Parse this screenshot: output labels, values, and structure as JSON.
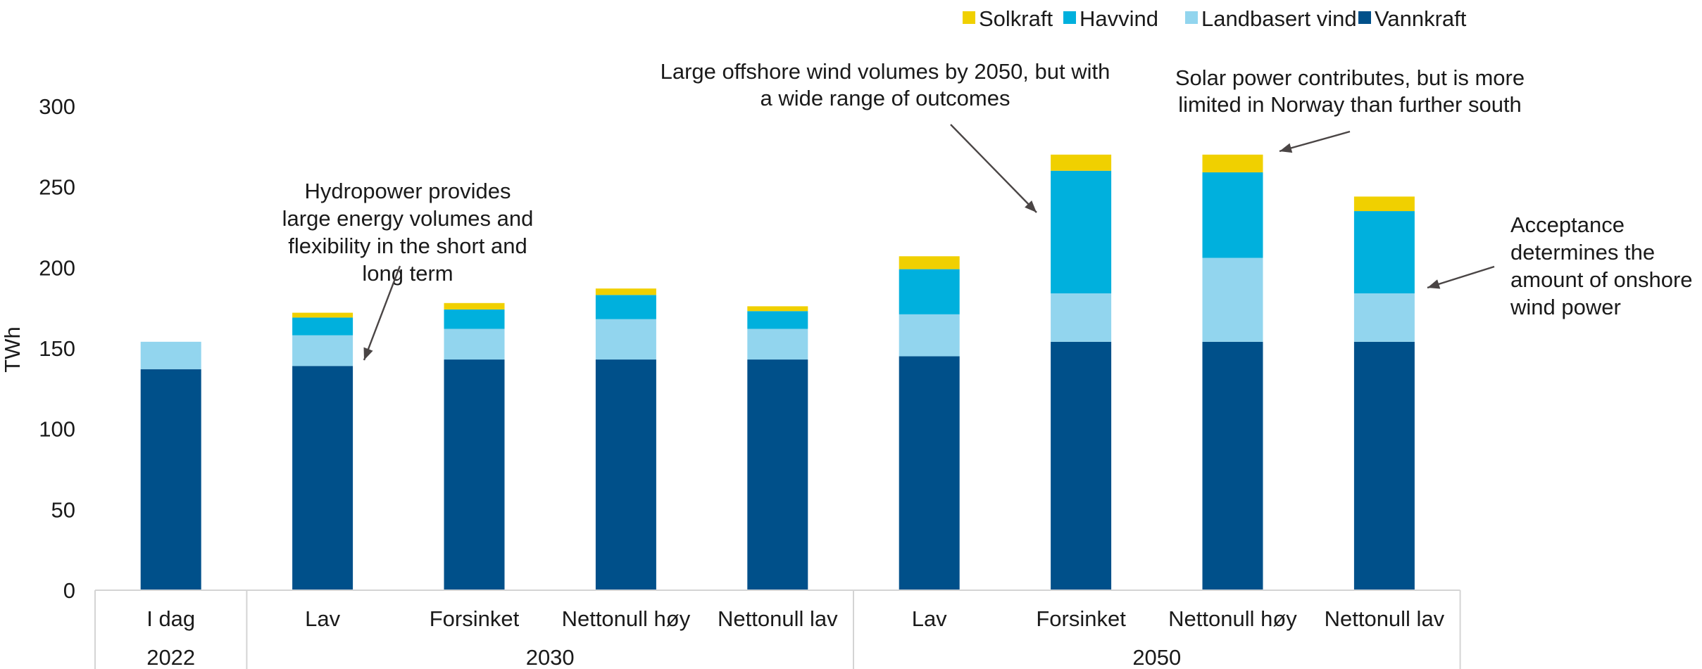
{
  "chart_data": {
    "type": "bar",
    "stacked": true,
    "ylabel": "TWh",
    "ylim": [
      0,
      300
    ],
    "yticks": [
      0,
      50,
      100,
      150,
      200,
      250,
      300
    ],
    "grid": false,
    "legend_position": "top-right",
    "categories": [
      "I dag",
      "Lav",
      "Forsinket",
      "Nettonull høy",
      "Nettonull lav",
      "Lav",
      "Forsinket",
      "Nettonull høy",
      "Nettonull lav"
    ],
    "groups": [
      {
        "label": "2022",
        "categories": 1
      },
      {
        "label": "2030",
        "categories": 4
      },
      {
        "label": "2050",
        "categories": 4
      }
    ],
    "series": [
      {
        "name": "Vannkraft",
        "color": "#00508a",
        "values": [
          137,
          139,
          143,
          143,
          143,
          145,
          154,
          154,
          154
        ]
      },
      {
        "name": "Landbasert vind",
        "color": "#92d5ee",
        "values": [
          17,
          19,
          19,
          25,
          19,
          26,
          30,
          52,
          30
        ]
      },
      {
        "name": "Havvind",
        "color": "#00b0dd",
        "values": [
          0,
          11,
          12,
          15,
          11,
          28,
          76,
          53,
          51
        ]
      },
      {
        "name": "Solkraft",
        "color": "#f0d000",
        "values": [
          0,
          3,
          4,
          4,
          3,
          8,
          10,
          11,
          9
        ]
      }
    ],
    "legend_order": [
      "Solkraft",
      "Havvind",
      "Landbasert vind",
      "Vannkraft"
    ],
    "annotations": [
      {
        "lines": [
          "Hydropower provides",
          "large energy volumes and",
          "flexibility in the short and",
          "long term"
        ]
      },
      {
        "lines": [
          "Large offshore wind volumes by 2050, but with",
          "a wide range of outcomes"
        ]
      },
      {
        "lines": [
          "Solar power contributes, but is more",
          "limited in Norway than further south"
        ]
      },
      {
        "lines": [
          "Acceptance",
          "determines the",
          "amount of onshore",
          "wind power"
        ]
      }
    ]
  }
}
